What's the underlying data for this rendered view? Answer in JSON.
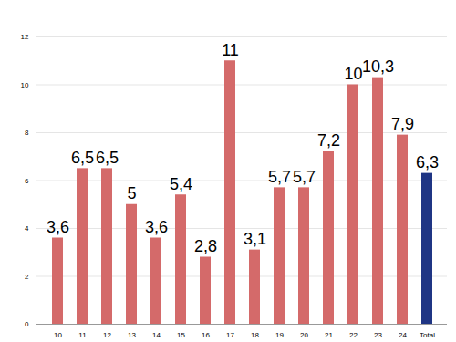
{
  "chart_data": {
    "type": "bar",
    "categories": [
      "10",
      "11",
      "12",
      "13",
      "14",
      "15",
      "16",
      "17",
      "18",
      "19",
      "20",
      "21",
      "22",
      "23",
      "24",
      "Total"
    ],
    "values": [
      3.6,
      6.5,
      6.5,
      5,
      3.6,
      5.4,
      2.8,
      11,
      3.1,
      5.7,
      5.7,
      7.2,
      10,
      10.3,
      7.9,
      6.3
    ],
    "value_labels": [
      "3,6",
      "6,5",
      "6,5",
      "5",
      "3,6",
      "5,4",
      "2,8",
      "11",
      "3,1",
      "5,7",
      "5,7",
      "7,2",
      "10",
      "10,3",
      "7,9",
      "6,3"
    ],
    "colors": [
      "#d46a6a",
      "#d46a6a",
      "#d46a6a",
      "#d46a6a",
      "#d46a6a",
      "#d46a6a",
      "#d46a6a",
      "#d46a6a",
      "#d46a6a",
      "#d46a6a",
      "#d46a6a",
      "#d46a6a",
      "#d46a6a",
      "#d46a6a",
      "#d46a6a",
      "#1f3584"
    ],
    "ylim": [
      0,
      12
    ],
    "yticks": [
      0,
      2,
      4,
      6,
      8,
      10,
      12
    ],
    "grid": true,
    "data_labels": true
  }
}
